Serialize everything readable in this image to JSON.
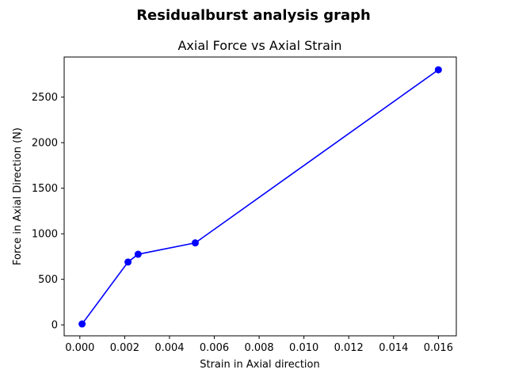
{
  "figure": {
    "suptitle": "Residualburst analysis graph"
  },
  "chart_data": {
    "type": "line",
    "title": "Axial Force vs Axial Strain",
    "xlabel": "Strain in Axial direction",
    "ylabel": "Force in Axial Direction (N)",
    "xlim": [
      -0.0007,
      0.0168
    ],
    "ylim": [
      -120,
      2940
    ],
    "xticks": [
      0.0,
      0.002,
      0.004,
      0.006,
      0.008,
      0.01,
      0.012,
      0.014,
      0.016
    ],
    "xtick_labels": [
      "0.000",
      "0.002",
      "0.004",
      "0.006",
      "0.008",
      "0.010",
      "0.012",
      "0.014",
      "0.016"
    ],
    "yticks": [
      0,
      500,
      1000,
      1500,
      2000,
      2500
    ],
    "ytick_labels": [
      "0",
      "500",
      "1000",
      "1500",
      "2000",
      "2500"
    ],
    "grid": false,
    "series": [
      {
        "color": "#0000ff",
        "marker": "circle",
        "x": [
          0.0001,
          0.00215,
          0.0026,
          0.00515,
          0.016
        ],
        "y": [
          10,
          690,
          775,
          900,
          2800
        ]
      }
    ]
  }
}
